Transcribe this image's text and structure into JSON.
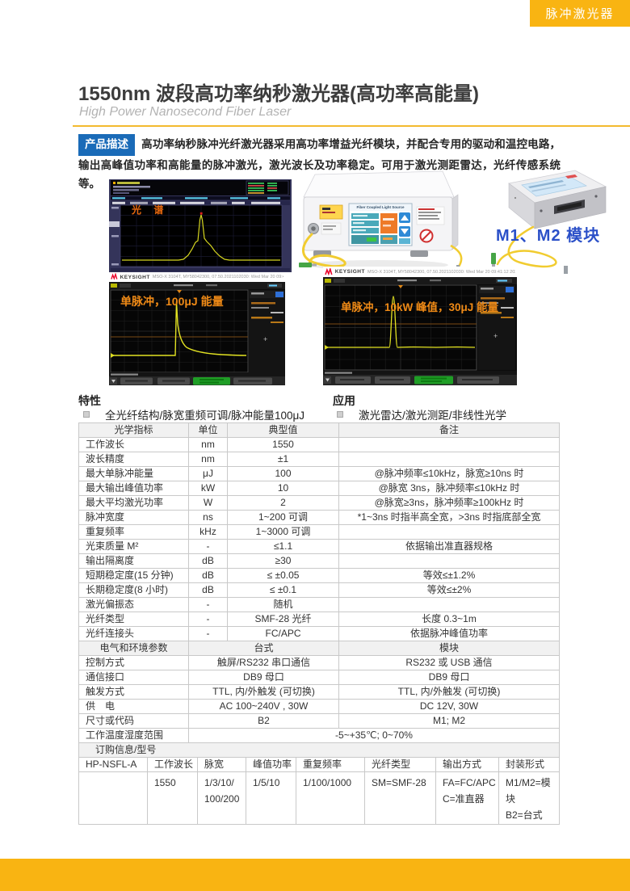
{
  "banner": {
    "label": "脉冲激光器"
  },
  "header": {
    "title": "1550nm 波段高功率纳秒激光器(高功率高能量)",
    "subtitle": "High Power Nanosecond Fiber Laser"
  },
  "description": {
    "badge": "产品描述",
    "text": "高功率纳秒脉冲光纤激光器采用高功率增益光纤模块，并配合专用的驱动和温控电路，输出高峰值功率和高能量的脉冲激光，激光波长及功率稳定。可用于激光测距雷达，光纤传感系统等。"
  },
  "figures": {
    "spectrum_label": "光 谱",
    "keysight_brand": "KEYSIGHT",
    "scope_left_meta": "MSO-X 3104T, MY58042300, 07.50.2021102030: Wed Mar 20 09:40:08 2024",
    "scope_right_meta": "MSO-X 3104T, MY58042300, 07.50.2021102030: Wed Mar 20 09:41:12 2024",
    "scope_left_annotation": "单脉冲，100μJ 能量",
    "scope_right_annotation": "单脉冲，10kW 峰值，30μJ 能量",
    "device_screen_title": "Fiber Coupled Light Source",
    "module_label": "M1、M2 模块"
  },
  "features": {
    "title": "特性",
    "items": [
      "全光纤结构/脉宽重频可调/脉冲能量100μJ"
    ]
  },
  "applications": {
    "title": "应用",
    "items": [
      "激光雷达/激光测距/非线性光学"
    ]
  },
  "spec_table": {
    "header": [
      "光学指标",
      "单位",
      "典型值",
      "备注"
    ],
    "optical_rows": [
      [
        "工作波长",
        "nm",
        "1550",
        ""
      ],
      [
        "波长精度",
        "nm",
        "±1",
        ""
      ],
      [
        "最大单脉冲能量",
        "μJ",
        "100",
        "@脉冲频率≤10kHz，脉宽≥10ns 时"
      ],
      [
        "最大输出峰值功率",
        "kW",
        "10",
        "@脉宽 3ns，脉冲频率≤10kHz 时"
      ],
      [
        "最大平均激光功率",
        "W",
        "2",
        "@脉宽≥3ns，脉冲频率≥100kHz 时"
      ],
      [
        "脉冲宽度",
        "ns",
        "1~200 可调",
        "*1~3ns 时指半高全宽，>3ns 时指底部全宽"
      ],
      [
        "重复频率",
        "kHz",
        "1~3000 可调",
        ""
      ],
      [
        "光束质量 M²",
        "-",
        "≤1.1",
        "依据输出准直器规格"
      ],
      [
        "输出隔离度",
        "dB",
        "≥30",
        ""
      ],
      [
        "短期稳定度(15 分钟)",
        "dB",
        "≤ ±0.05",
        "等效≤±1.2%"
      ],
      [
        "长期稳定度(8 小时)",
        "dB",
        "≤ ±0.1",
        "等效≤±2%"
      ],
      [
        "激光偏振态",
        "-",
        "随机",
        ""
      ],
      [
        "光纤类型",
        "-",
        "SMF-28 光纤",
        "长度 0.3~1m"
      ],
      [
        "光纤连接头",
        "-",
        "FC/APC",
        "依据脉冲峰值功率"
      ]
    ],
    "electrical_header": [
      "电气和环境参数",
      "台式",
      "模块"
    ],
    "electrical_rows": [
      [
        "控制方式",
        "触屏/RS232 串口通信",
        "RS232 或 USB 通信"
      ],
      [
        "通信接口",
        "DB9 母口",
        "DB9 母口"
      ],
      [
        "触发方式",
        "TTL, 内/外触发 (可切换)",
        "TTL, 内/外触发 (可切换)"
      ],
      [
        "供　电",
        "AC 100~240V , 30W",
        "DC 12V, 30W"
      ],
      [
        "尺寸或代码",
        "B2",
        "M1; M2"
      ]
    ],
    "temp_row": [
      "工作温度湿度范围",
      "-5~+35℃; 0~70%"
    ]
  },
  "ordering_table": {
    "title": "订购信息/型号",
    "header": [
      "HP-NSFL-A",
      "工作波长",
      "脉宽",
      "峰值功率",
      "重复频率",
      "光纤类型",
      "输出方式",
      "封装形式"
    ],
    "row": [
      "",
      "1550",
      "1/3/10/\n100/200",
      "1/5/10",
      "1/100/1000",
      "SM=SMF-28",
      "FA=FC/APC\nC=准直器",
      "M1/M2=模块\nB2=台式"
    ]
  },
  "colors": {
    "accent_yellow": "#f9b412",
    "badge_blue": "#1a6bb8",
    "module_label_blue": "#2b50c8",
    "annotation_orange": "#ef8a16",
    "trace_yellow": "#e2e222"
  }
}
